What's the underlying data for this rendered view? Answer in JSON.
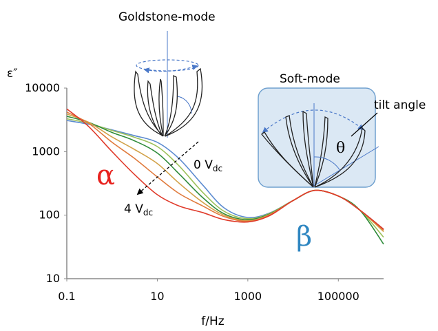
{
  "chart_data": {
    "type": "line",
    "title": "",
    "xlabel": "f/Hz",
    "ylabel": "ε″",
    "x_scale": "log",
    "y_scale": "log",
    "xlim": [
      0.1,
      1000000
    ],
    "ylim": [
      10,
      10000
    ],
    "x_ticks": [
      "0.1",
      "10",
      "1000",
      "100000"
    ],
    "y_ticks": [
      "10",
      "100",
      "1000",
      "10000"
    ],
    "grid": false,
    "legend": "none",
    "x": [
      0.1,
      0.3,
      1,
      3,
      10,
      30,
      100,
      300,
      1000,
      3000,
      10000,
      30000,
      100000,
      300000,
      1000000
    ],
    "series": [
      {
        "color": "#5b8bd0",
        "values": [
          3100,
          2700,
          2200,
          1800,
          1400,
          780,
          300,
          130,
          92,
          108,
          170,
          245,
          200,
          120,
          60
        ]
      },
      {
        "color": "#9cc05a",
        "values": [
          3300,
          2800,
          2150,
          1700,
          1200,
          600,
          230,
          115,
          88,
          106,
          170,
          245,
          200,
          120,
          45
        ]
      },
      {
        "color": "#2e8b3a",
        "values": [
          3600,
          2900,
          2000,
          1500,
          950,
          450,
          190,
          105,
          85,
          104,
          170,
          245,
          200,
          120,
          35
        ]
      },
      {
        "color": "#d2a24a",
        "values": [
          3900,
          2900,
          1700,
          1100,
          650,
          320,
          160,
          100,
          82,
          102,
          170,
          245,
          200,
          120,
          55
        ]
      },
      {
        "color": "#e07a3c",
        "values": [
          4200,
          2800,
          1400,
          800,
          400,
          220,
          140,
          95,
          80,
          100,
          170,
          245,
          200,
          120,
          58
        ]
      },
      {
        "color": "#e03a2a",
        "values": [
          4700,
          2500,
          1000,
          450,
          210,
          140,
          110,
          85,
          78,
          98,
          170,
          245,
          200,
          120,
          60
        ]
      }
    ],
    "annotations": {
      "alpha": "α",
      "beta": "β",
      "voltage_top": "0 V",
      "voltage_top_sub": "dc",
      "voltage_bottom": "4 V",
      "voltage_bottom_sub": "dc",
      "goldstone": "Goldstone-mode",
      "softmode": "Soft-mode",
      "tilt_angle": "tilt angle",
      "theta": "θ"
    },
    "colors": {
      "alpha": "#e8231f",
      "beta": "#2e86c1",
      "softmode_box_fill": "#dbe8f4",
      "softmode_box_stroke": "#6fa0cf",
      "arrow": "#4a78c8"
    }
  }
}
